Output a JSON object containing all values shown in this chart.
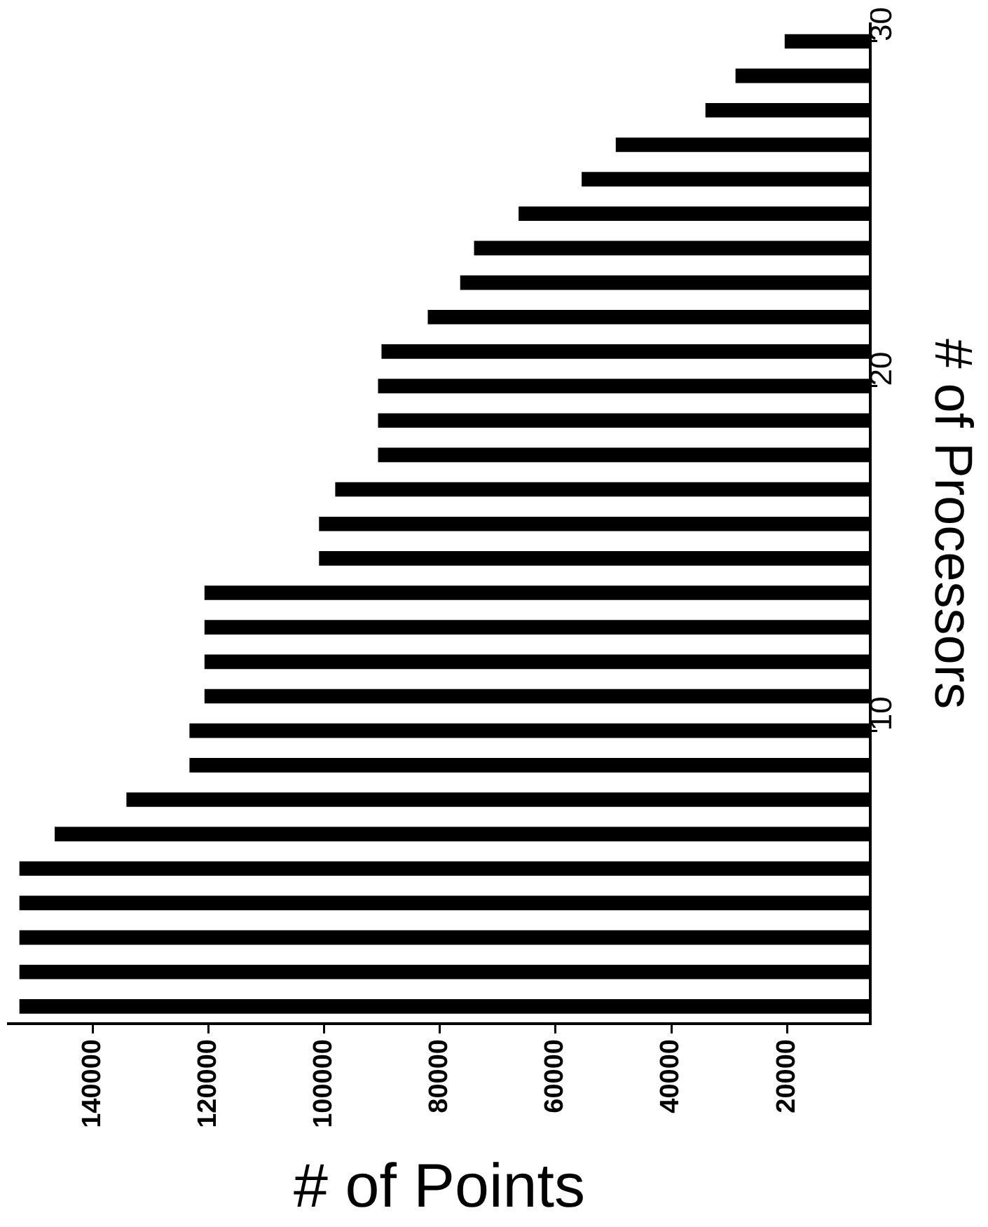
{
  "chart_data": {
    "type": "bar",
    "orientation": "horizontal",
    "xlabel": "# of Points",
    "ylabel": "# of Processors",
    "categories": [
      "30",
      null,
      null,
      null,
      null,
      null,
      null,
      null,
      null,
      null,
      "20",
      null,
      null,
      null,
      null,
      null,
      null,
      null,
      null,
      null,
      "10",
      null,
      null,
      null,
      null,
      null,
      null,
      null,
      null
    ],
    "values": [
      20400,
      28900,
      34100,
      49600,
      55500,
      66400,
      74100,
      76500,
      82100,
      90100,
      90700,
      90700,
      90700,
      98100,
      100900,
      100900,
      120700,
      120700,
      120700,
      120700,
      123300,
      123300,
      134200,
      146600,
      152700,
      152700,
      152700,
      152700,
      152700
    ],
    "color": "#000000",
    "xlim": [
      154600,
      5600
    ],
    "xticks": [
      140000,
      120000,
      100000,
      80000,
      60000,
      40000,
      20000
    ]
  }
}
